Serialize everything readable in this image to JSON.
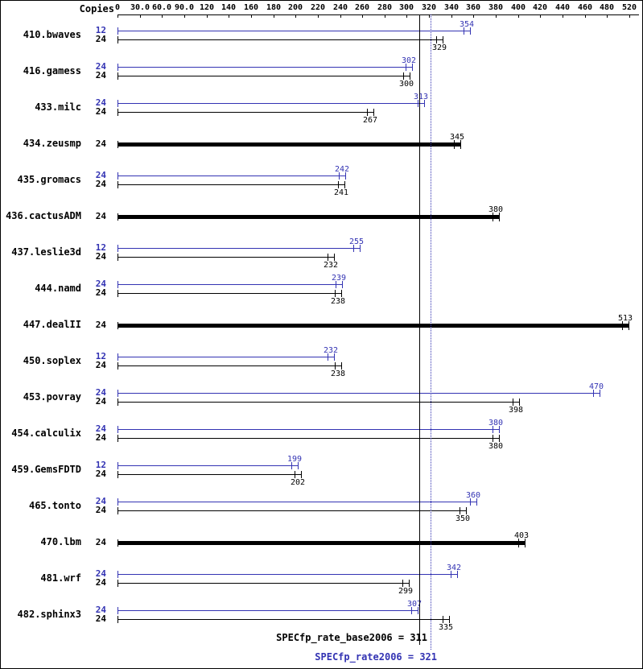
{
  "chart_data": {
    "type": "bar",
    "orientation": "horizontal",
    "copies_header": "Copies",
    "axis_ticks": [
      0,
      30,
      60,
      90,
      120,
      140,
      160,
      180,
      200,
      220,
      240,
      260,
      280,
      300,
      320,
      340,
      360,
      380,
      400,
      420,
      440,
      460,
      480,
      520
    ],
    "axis_tick_labels": [
      "0",
      "30.0",
      "60.0",
      "90.0",
      "120",
      "140",
      "160",
      "180",
      "200",
      "220",
      "240",
      "260",
      "280",
      "300",
      "320",
      "340",
      "360",
      "380",
      "400",
      "420",
      "440",
      "460",
      "480",
      "520"
    ],
    "colors": {
      "peak": "#3333b3",
      "base": "#000000"
    },
    "benchmarks": [
      {
        "name": "410.bwaves",
        "bars": [
          {
            "copies": "12",
            "kind": "peak",
            "value": 354
          },
          {
            "copies": "24",
            "kind": "base",
            "value": 329
          }
        ]
      },
      {
        "name": "416.gamess",
        "bars": [
          {
            "copies": "24",
            "kind": "peak",
            "value": 302
          },
          {
            "copies": "24",
            "kind": "base",
            "value": 300
          }
        ]
      },
      {
        "name": "433.milc",
        "bars": [
          {
            "copies": "24",
            "kind": "peak",
            "value": 313
          },
          {
            "copies": "24",
            "kind": "base",
            "value": 267
          }
        ]
      },
      {
        "name": "434.zeusmp",
        "bars": [
          {
            "copies": "24",
            "kind": "base-only",
            "value": 345
          }
        ]
      },
      {
        "name": "435.gromacs",
        "bars": [
          {
            "copies": "24",
            "kind": "peak",
            "value": 242
          },
          {
            "copies": "24",
            "kind": "base",
            "value": 241
          }
        ]
      },
      {
        "name": "436.cactusADM",
        "bars": [
          {
            "copies": "24",
            "kind": "base-only",
            "value": 380
          }
        ]
      },
      {
        "name": "437.leslie3d",
        "bars": [
          {
            "copies": "12",
            "kind": "peak",
            "value": 255
          },
          {
            "copies": "24",
            "kind": "base",
            "value": 232
          }
        ]
      },
      {
        "name": "444.namd",
        "bars": [
          {
            "copies": "24",
            "kind": "peak",
            "value": 239
          },
          {
            "copies": "24",
            "kind": "base",
            "value": 238
          }
        ]
      },
      {
        "name": "447.dealII",
        "bars": [
          {
            "copies": "24",
            "kind": "base-only",
            "value": 513
          }
        ]
      },
      {
        "name": "450.soplex",
        "bars": [
          {
            "copies": "12",
            "kind": "peak",
            "value": 232
          },
          {
            "copies": "24",
            "kind": "base",
            "value": 238
          }
        ]
      },
      {
        "name": "453.povray",
        "bars": [
          {
            "copies": "24",
            "kind": "peak",
            "value": 470
          },
          {
            "copies": "24",
            "kind": "base",
            "value": 398
          }
        ]
      },
      {
        "name": "454.calculix",
        "bars": [
          {
            "copies": "24",
            "kind": "peak",
            "value": 380
          },
          {
            "copies": "24",
            "kind": "base",
            "value": 380
          }
        ]
      },
      {
        "name": "459.GemsFDTD",
        "bars": [
          {
            "copies": "12",
            "kind": "peak",
            "value": 199
          },
          {
            "copies": "24",
            "kind": "base",
            "value": 202
          }
        ]
      },
      {
        "name": "465.tonto",
        "bars": [
          {
            "copies": "24",
            "kind": "peak",
            "value": 360
          },
          {
            "copies": "24",
            "kind": "base",
            "value": 350
          }
        ]
      },
      {
        "name": "470.lbm",
        "bars": [
          {
            "copies": "24",
            "kind": "base-only",
            "value": 403
          }
        ]
      },
      {
        "name": "481.wrf",
        "bars": [
          {
            "copies": "24",
            "kind": "peak",
            "value": 342
          },
          {
            "copies": "24",
            "kind": "base",
            "value": 299
          }
        ]
      },
      {
        "name": "482.sphinx3",
        "bars": [
          {
            "copies": "24",
            "kind": "peak",
            "value": 307
          },
          {
            "copies": "24",
            "kind": "base",
            "value": 335
          }
        ]
      }
    ],
    "reference_lines": [
      {
        "metric": "SPECfp_rate_base2006",
        "value": 311,
        "label": "SPECfp_rate_base2006 = 311",
        "line_style": "solid",
        "line_color": "#000000",
        "label_color": "#000000"
      },
      {
        "metric": "SPECfp_rate2006",
        "value": 321,
        "label": "SPECfp_rate2006 = 321",
        "line_style": "dotted",
        "line_color": "#3333b3",
        "label_color": "#3333b3"
      }
    ]
  }
}
